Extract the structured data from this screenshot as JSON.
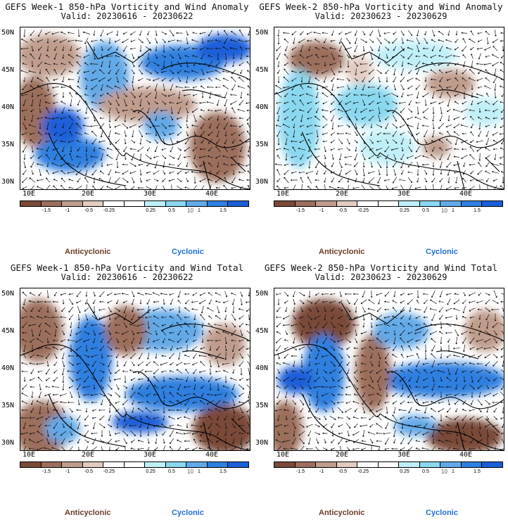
{
  "colors": {
    "anticyclonic": "#6b3a26",
    "cyclonic": "#1f6fd6",
    "colorbar": [
      "#7a4a38",
      "#9c6e5c",
      "#bf9c8c",
      "#e3cbc0",
      "#ffffff",
      "#ffffff",
      "#bfeff8",
      "#8ad8f0",
      "#62a9e8",
      "#2f7fe0",
      "#1a5fd8"
    ]
  },
  "colorbar_labels": [
    "-1.5",
    "-1",
    "-0.5",
    "-0.25",
    "0.25",
    "0.5",
    "1",
    "1.5"
  ],
  "colorbar_multiplier": "10",
  "legend": {
    "anticyclonic": "Anticyclonic",
    "cyclonic": "Cyclonic"
  },
  "axes": {
    "lat_labels": [
      "50N",
      "45N",
      "40N",
      "35N",
      "30N"
    ],
    "lon_labels": [
      "10E",
      "20E",
      "30E",
      "40E"
    ]
  },
  "panels": [
    {
      "title": "GEFS Week-1 850-hPa Vorticity and Wind Anomaly",
      "valid": "Valid: 20230616 - 20230622"
    },
    {
      "title": "GEFS Week-2 850-hPa Vorticity and Wind Anomaly",
      "valid": "Valid: 20230623 - 20230629"
    },
    {
      "title": "GEFS Week-1 850-hPa Vorticity and Wind Total",
      "valid": "Valid: 20230616 - 20230622"
    },
    {
      "title": "GEFS Week-2 850-hPa Vorticity and Wind Total",
      "valid": "Valid: 20230623 - 20230629"
    }
  ]
}
